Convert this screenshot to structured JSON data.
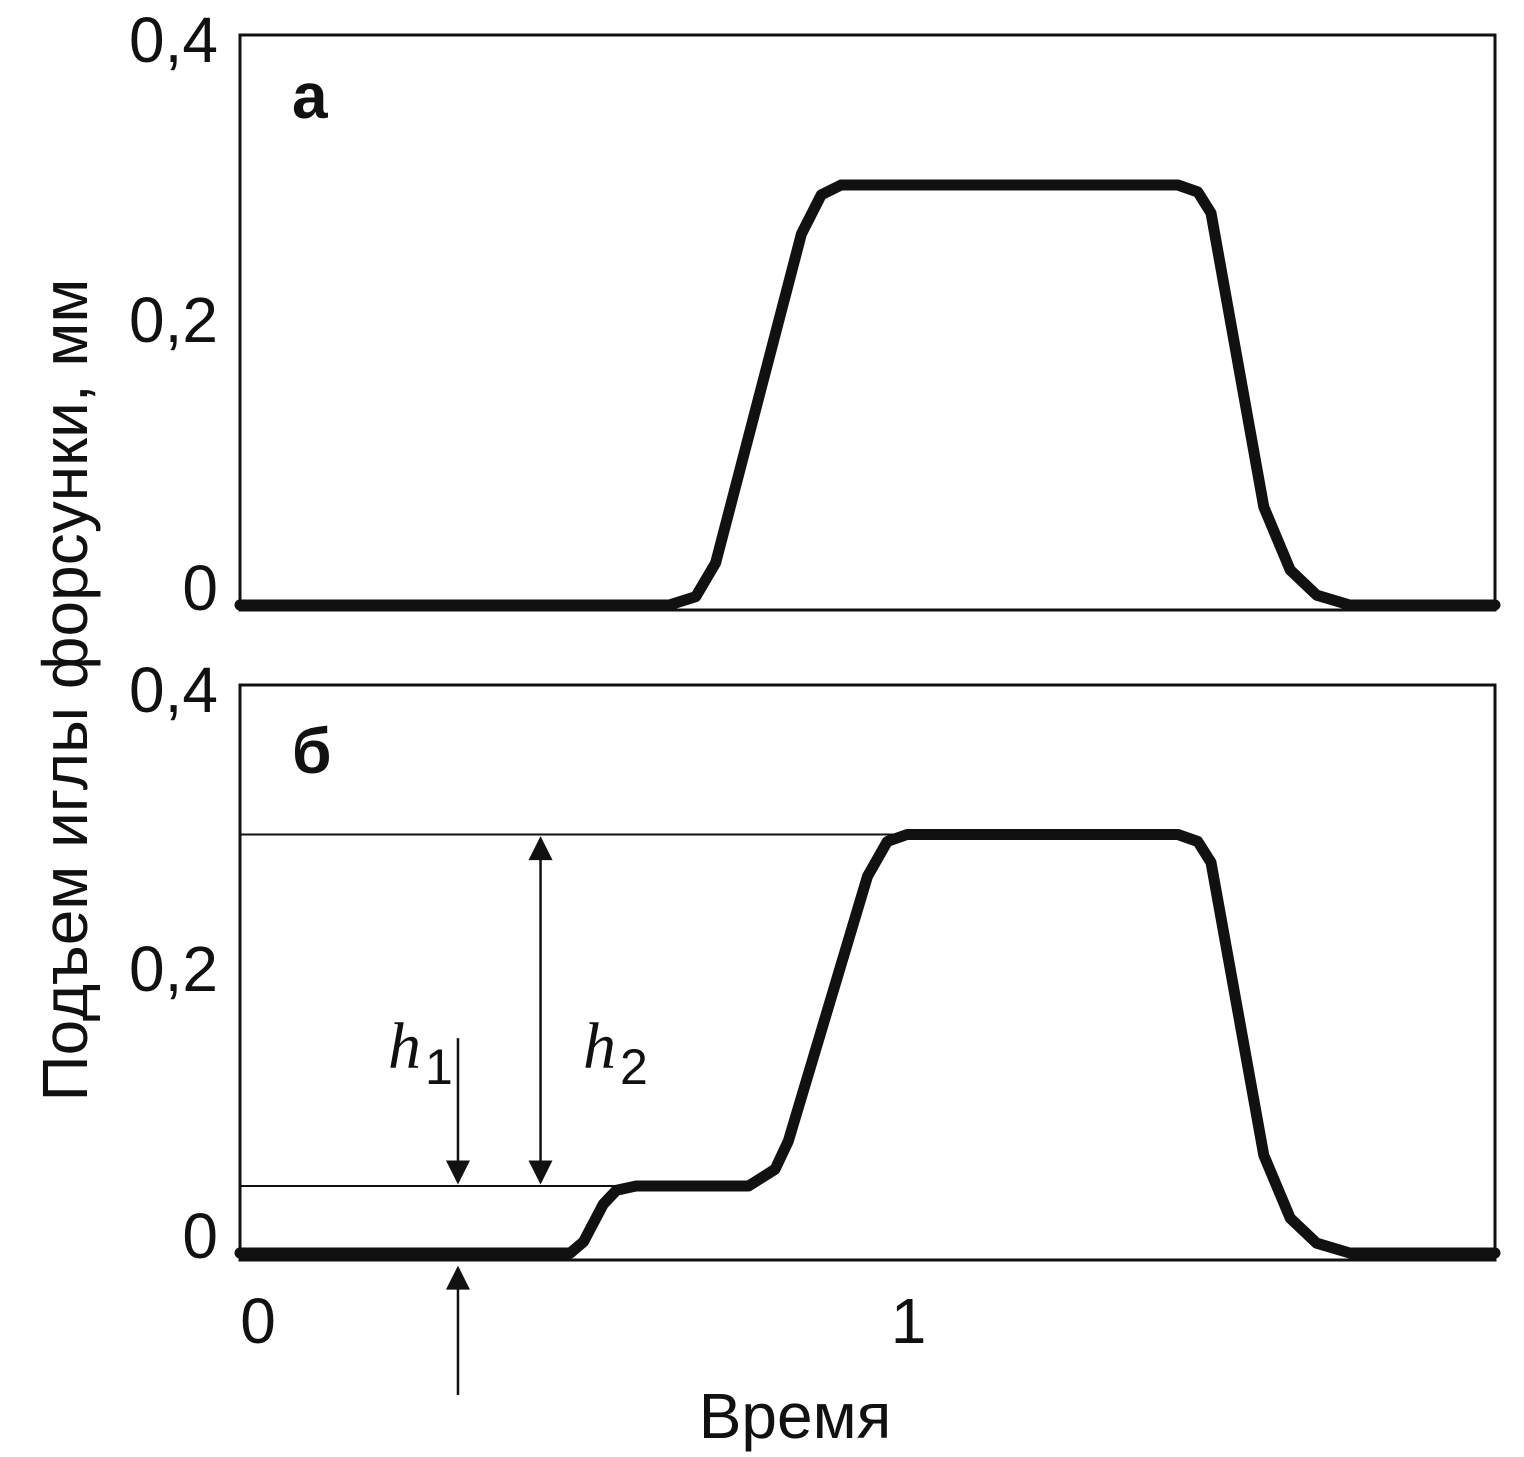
{
  "ylabel": "Подъем иглы форсунки, мм",
  "xlabel": "Время",
  "chart_data": [
    {
      "type": "line",
      "panel_label": "а",
      "xlim": [
        0,
        1.9
      ],
      "ylim": [
        0,
        0.4
      ],
      "yticks": [
        {
          "value": 0,
          "label": "0"
        },
        {
          "value": 0.2,
          "label": "0,2"
        },
        {
          "value": 0.4,
          "label": "0,4"
        }
      ],
      "series": [
        {
          "color": "#111111",
          "points": [
            [
              0,
              0
            ],
            [
              0.65,
              0
            ],
            [
              0.69,
              0.006
            ],
            [
              0.72,
              0.03
            ],
            [
              0.85,
              0.265
            ],
            [
              0.88,
              0.293
            ],
            [
              0.91,
              0.3
            ],
            [
              1.42,
              0.3
            ],
            [
              1.45,
              0.295
            ],
            [
              1.47,
              0.28
            ],
            [
              1.55,
              0.07
            ],
            [
              1.59,
              0.025
            ],
            [
              1.63,
              0.007
            ],
            [
              1.68,
              0
            ],
            [
              1.9,
              0
            ]
          ]
        }
      ]
    },
    {
      "type": "line",
      "panel_label": "б",
      "xlim": [
        0,
        1.9
      ],
      "ylim": [
        0,
        0.4
      ],
      "yticks": [
        {
          "value": 0,
          "label": "0"
        },
        {
          "value": 0.2,
          "label": "0,2"
        },
        {
          "value": 0.4,
          "label": "0,4"
        }
      ],
      "xticks": [
        {
          "value": 0,
          "label": "0"
        },
        {
          "value": 1,
          "label": "1"
        }
      ],
      "series": [
        {
          "color": "#111111",
          "points": [
            [
              0,
              0
            ],
            [
              0.5,
              0
            ],
            [
              0.52,
              0.008
            ],
            [
              0.55,
              0.035
            ],
            [
              0.57,
              0.045
            ],
            [
              0.6,
              0.048
            ],
            [
              0.77,
              0.048
            ],
            [
              0.81,
              0.06
            ],
            [
              0.83,
              0.08
            ],
            [
              0.95,
              0.27
            ],
            [
              0.98,
              0.295
            ],
            [
              1.01,
              0.3
            ],
            [
              1.42,
              0.3
            ],
            [
              1.45,
              0.295
            ],
            [
              1.47,
              0.28
            ],
            [
              1.55,
              0.07
            ],
            [
              1.59,
              0.025
            ],
            [
              1.63,
              0.007
            ],
            [
              1.68,
              0
            ],
            [
              1.9,
              0
            ]
          ]
        }
      ],
      "reference_lines": [
        {
          "y": 0.3,
          "x_from": 0,
          "x_to": 1.0
        },
        {
          "y": 0.048,
          "x_from": 0,
          "x_to": 0.6
        }
      ],
      "annotations": [
        {
          "name": "h1",
          "symbol": "h",
          "subscript": "1",
          "x": 0.33,
          "y_from": 0.154,
          "y_to": 0.048,
          "direction": "down"
        },
        {
          "name": "h2",
          "symbol": "h",
          "subscript": "2",
          "x": 0.455,
          "y_from": 0.3,
          "y_to": 0.048,
          "direction": "both"
        }
      ],
      "marker_arrow": {
        "x": 0.33,
        "direction": "up"
      }
    }
  ]
}
